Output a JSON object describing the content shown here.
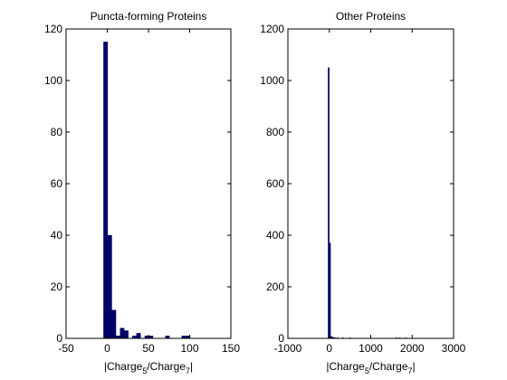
{
  "chart_data": [
    {
      "type": "bar",
      "title": "Puncta-forming Proteins",
      "xlabel": {
        "prefix": "|Charge",
        "sub1": "5",
        "mid": "/Charge",
        "sub2": "7",
        "suffix": "|"
      },
      "xlim": [
        -50,
        150
      ],
      "ylim": [
        0,
        120
      ],
      "xticks": [
        -50,
        0,
        50,
        100,
        150
      ],
      "yticks": [
        0,
        20,
        40,
        60,
        80,
        100,
        120
      ],
      "bin_width": 5,
      "bar_color": "#000066",
      "bars": [
        {
          "x": -2,
          "value": 115
        },
        {
          "x": 3,
          "value": 40
        },
        {
          "x": 8,
          "value": 11
        },
        {
          "x": 13,
          "value": 1
        },
        {
          "x": 18,
          "value": 4
        },
        {
          "x": 23,
          "value": 3
        },
        {
          "x": 33,
          "value": 1
        },
        {
          "x": 38,
          "value": 2
        },
        {
          "x": 48,
          "value": 1
        },
        {
          "x": 53,
          "value": 1
        },
        {
          "x": 73,
          "value": 1
        },
        {
          "x": 93,
          "value": 1
        },
        {
          "x": 98,
          "value": 1
        }
      ]
    },
    {
      "type": "bar",
      "title": "Other Proteins",
      "xlabel": {
        "prefix": "|Charge",
        "sub1": "5",
        "mid": "/Charge",
        "sub2": "7",
        "suffix": "|"
      },
      "xlim": [
        -1000,
        3000
      ],
      "ylim": [
        0,
        1200
      ],
      "xticks": [
        -1000,
        0,
        1000,
        2000,
        3000
      ],
      "yticks": [
        0,
        200,
        400,
        600,
        800,
        1000,
        1200
      ],
      "bin_width": 30,
      "bar_color": "#000066",
      "bars": [
        {
          "x": -15,
          "value": 1050
        },
        {
          "x": 15,
          "value": 370
        },
        {
          "x": 45,
          "value": 8
        },
        {
          "x": 75,
          "value": 5
        },
        {
          "x": 105,
          "value": 4
        },
        {
          "x": 135,
          "value": 3
        },
        {
          "x": 200,
          "value": 2
        },
        {
          "x": 330,
          "value": 2
        },
        {
          "x": 500,
          "value": 1
        },
        {
          "x": 1620,
          "value": 2
        },
        {
          "x": 1700,
          "value": 1
        },
        {
          "x": 1850,
          "value": 1
        }
      ]
    }
  ]
}
